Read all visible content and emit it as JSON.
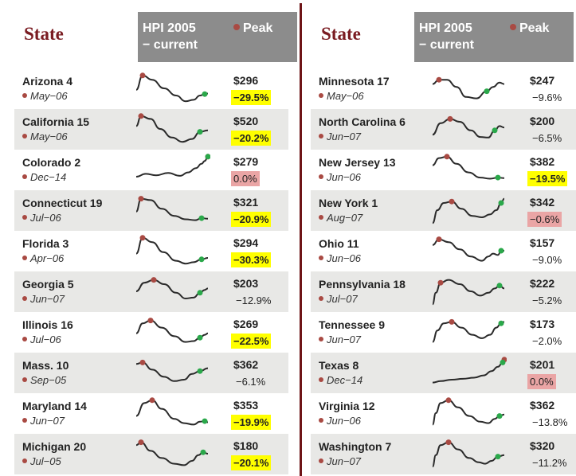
{
  "header": {
    "state_label": "State",
    "hpi_label_line1": "HPI 2005",
    "hpi_label_line2": "− current",
    "peak_label": "Peak"
  },
  "colors": {
    "peak": "#a94a43",
    "current": "#2aa84a",
    "line": "#2a2a2a",
    "highlight_yellow": "#ffff00",
    "highlight_pink": "#eaa5a5",
    "shade": "#e8e8e6",
    "title": "#7a1c22",
    "header_box": "#8c8c8c"
  },
  "left": [
    {
      "name": "Arizona 4",
      "peak": "May−06",
      "price": "$296",
      "change": "−29.5%",
      "hl": "yellow",
      "shape": "AZ"
    },
    {
      "name": "California 15",
      "peak": "May−06",
      "price": "$520",
      "change": "−20.2%",
      "hl": "yellow",
      "shape": "CA"
    },
    {
      "name": "Colorado 2",
      "peak": "Dec−14",
      "price": "$279",
      "change": "0.0%",
      "hl": "pink",
      "shape": "CO"
    },
    {
      "name": "Connecticut 19",
      "peak": "Jul−06",
      "price": "$321",
      "change": "−20.9%",
      "hl": "yellow",
      "shape": "CT"
    },
    {
      "name": "Florida 3",
      "peak": "Apr−06",
      "price": "$294",
      "change": "−30.3%",
      "hl": "yellow",
      "shape": "FL"
    },
    {
      "name": "Georgia 5",
      "peak": "Jun−07",
      "price": "$203",
      "change": "−12.9%",
      "hl": "",
      "shape": "GA"
    },
    {
      "name": "Illinois 16",
      "peak": "Jul−06",
      "price": "$269",
      "change": "−22.5%",
      "hl": "yellow",
      "shape": "IL"
    },
    {
      "name": "Mass. 10",
      "peak": "Sep−05",
      "price": "$362",
      "change": "−6.1%",
      "hl": "",
      "shape": "MA"
    },
    {
      "name": "Maryland 14",
      "peak": "Jun−07",
      "price": "$353",
      "change": "−19.9%",
      "hl": "yellow",
      "shape": "MD"
    },
    {
      "name": "Michigan 20",
      "peak": "Jul−05",
      "price": "$180",
      "change": "−20.1%",
      "hl": "yellow",
      "shape": "MI"
    }
  ],
  "right": [
    {
      "name": "Minnesota 17",
      "peak": "May−06",
      "price": "$247",
      "change": "−9.6%",
      "hl": "",
      "shape": "MN"
    },
    {
      "name": "North Carolina 6",
      "peak": "Jun−07",
      "price": "$200",
      "change": "−6.5%",
      "hl": "",
      "shape": "NC"
    },
    {
      "name": "New Jersey 13",
      "peak": "Jun−06",
      "price": "$382",
      "change": "−19.5%",
      "hl": "yellow",
      "shape": "NJ"
    },
    {
      "name": "New York 1",
      "peak": "Aug−07",
      "price": "$342",
      "change": "−0.6%",
      "hl": "pink",
      "shape": "NY"
    },
    {
      "name": "Ohio 11",
      "peak": "Jun−06",
      "price": "$157",
      "change": "−9.0%",
      "hl": "",
      "shape": "OH"
    },
    {
      "name": "Pennsylvania 18",
      "peak": "Jul−07",
      "price": "$222",
      "change": "−5.2%",
      "hl": "",
      "shape": "PA"
    },
    {
      "name": "Tennessee 9",
      "peak": "Jun−07",
      "price": "$173",
      "change": "−2.0%",
      "hl": "",
      "shape": "TN"
    },
    {
      "name": "Texas 8",
      "peak": "Dec−14",
      "price": "$201",
      "change": "0.0%",
      "hl": "pink",
      "shape": "TX"
    },
    {
      "name": "Virginia 12",
      "peak": "Jun−06",
      "price": "$362",
      "change": "−13.8%",
      "hl": "",
      "shape": "VA"
    },
    {
      "name": "Washington 7",
      "peak": "Jun−07",
      "price": "$320",
      "change": "−11.2%",
      "hl": "",
      "shape": "WA"
    }
  ]
}
